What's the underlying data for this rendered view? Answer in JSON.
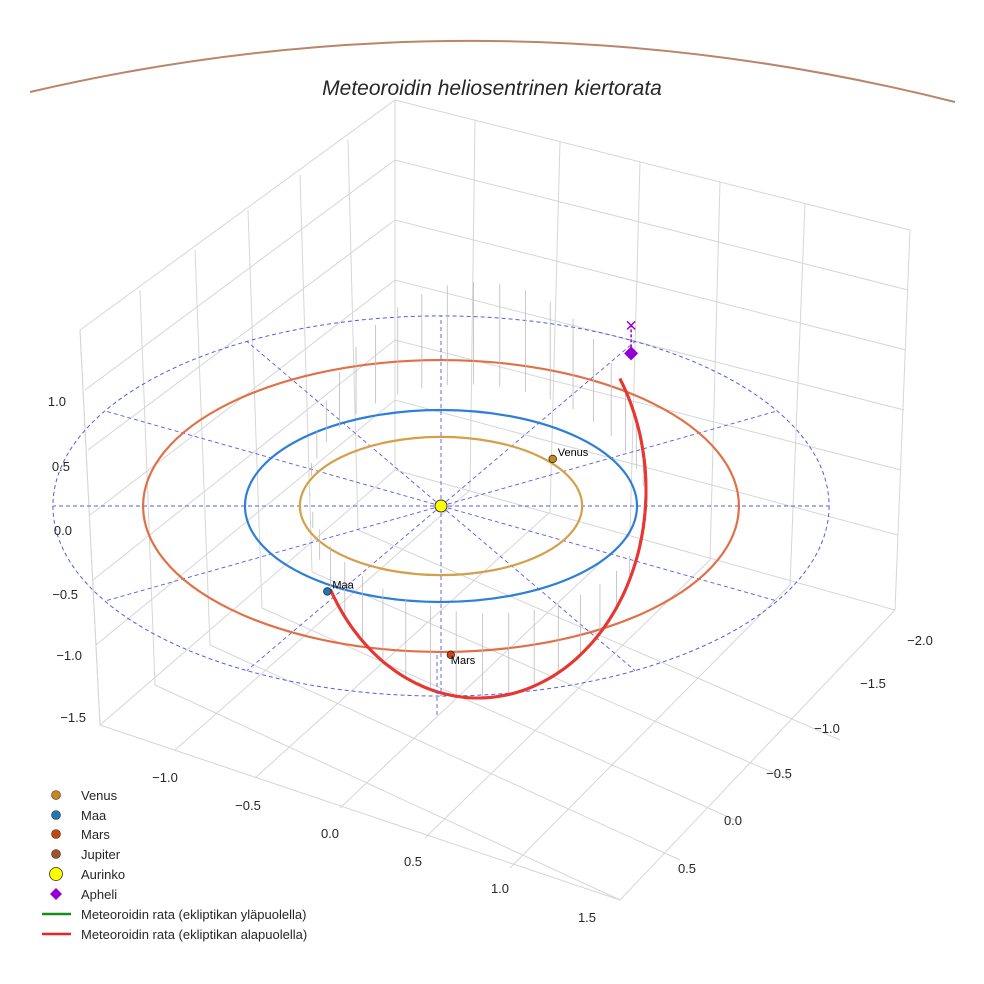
{
  "chart_data": {
    "type": "3d-line-scatter",
    "title": "Meteoroidin heliosentrinen kiertorata",
    "xlabel": "",
    "ylabel": "",
    "zlabel": "",
    "x_ticks": [
      "−1.0",
      "−0.5",
      "0.0",
      "0.5",
      "1.0",
      "1.5"
    ],
    "y_ticks": [
      "−2.0",
      "−1.5",
      "−1.0",
      "−0.5",
      "0.0",
      "0.5"
    ],
    "z_ticks": [
      "1.0",
      "0.5",
      "0.0",
      "−0.5",
      "−1.0",
      "−1.5"
    ],
    "orbits": [
      {
        "name": "Venus",
        "radius_au": 0.72,
        "color": "#d4a04a"
      },
      {
        "name": "Maa",
        "radius_au": 1.0,
        "color": "#2f7fd8"
      },
      {
        "name": "Mars",
        "radius_au": 1.52,
        "color": "#e07048"
      },
      {
        "name": "ecliptic-grid",
        "radius_au": 1.98,
        "color": "#5a5ae0"
      }
    ],
    "bodies": [
      {
        "name": "Venus",
        "x": 0.57,
        "y": -0.49,
        "z": 0,
        "color": "#c9861a",
        "label": "Venus"
      },
      {
        "name": "Maa",
        "x": -0.58,
        "y": 0.89,
        "z": 0,
        "color": "#1f77b4",
        "label": "Maa"
      },
      {
        "name": "Mars",
        "x": 0.05,
        "y": 1.55,
        "z": 0,
        "color": "#c84410",
        "label": "Mars"
      },
      {
        "name": "Aurinko",
        "x": 0,
        "y": 0,
        "z": 0,
        "color": "#ffff00",
        "label": ""
      }
    ],
    "apheli": {
      "x": 0.97,
      "y": -1.35,
      "z": 0.2,
      "color": "#9400d3"
    },
    "meteoroid_colors": {
      "above": "#3a9a3a",
      "below": "#ee3333"
    },
    "legend": {
      "placement": "bottom-left",
      "items": [
        {
          "label": "Venus",
          "marker": "circle",
          "color": "#c9861a"
        },
        {
          "label": "Maa",
          "marker": "circle",
          "color": "#1f77b4"
        },
        {
          "label": "Mars",
          "marker": "circle",
          "color": "#c84410"
        },
        {
          "label": "Jupiter",
          "marker": "circle",
          "color": "#a0522d"
        },
        {
          "label": "Aurinko",
          "marker": "big-circle",
          "color": "#ffff00"
        },
        {
          "label": "Apheli",
          "marker": "diamond",
          "color": "#9400d3"
        },
        {
          "label": "Meteoroidin rata (ekliptikan yläpuolella)",
          "marker": "line",
          "color": "#1a8a1a"
        },
        {
          "label": "Meteoroidin rata (ekliptikan alapuolella)",
          "marker": "line",
          "color": "#ee2222"
        }
      ]
    }
  }
}
